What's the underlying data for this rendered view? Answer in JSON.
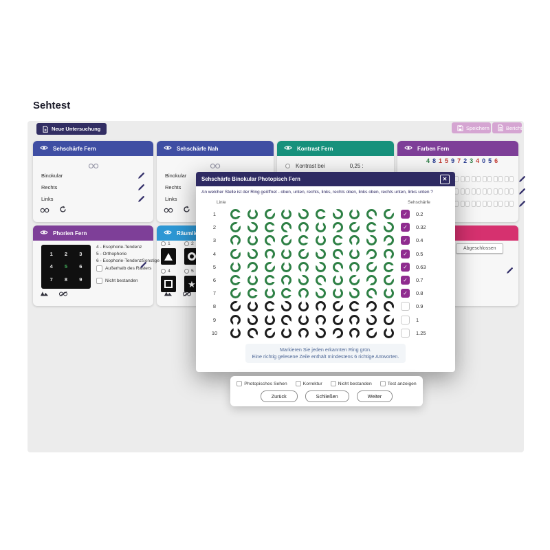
{
  "page": {
    "title": "Sehtest"
  },
  "toolbar": {
    "new_exam_label": "Neue Untersuchung",
    "save_label": "Speichern",
    "report_label": "Bericht"
  },
  "icons": {
    "close-icon": "✕",
    "check-icon": "✓",
    "star-icon": "★",
    "infinity-icon": "∞"
  },
  "colors": {
    "header_indigo": "#3f4ea3",
    "header_teal": "#17917c",
    "header_purple": "#7e3f98",
    "header_blue": "#2d97d4",
    "header_pink": "#d6316f",
    "modal_header": "#2e2a62",
    "ring_green": "#2e8045",
    "ring_black": "#1d1d1d",
    "checkbox_purple": "#8f2c8f",
    "digit_green": "#2e7d46",
    "digit_blue": "#273a8f",
    "digit_red": "#c23b33",
    "grid_highlight_green": "#43b05c"
  },
  "cards": {
    "sehscharfe_fern": {
      "title": "Sehschärfe Fern",
      "rows": [
        "Binokular",
        "Rechts",
        "Links"
      ]
    },
    "sehscharfe_nah": {
      "title": "Sehschärfe Nah",
      "rows": [
        "Binokular",
        "Rechts",
        "Links"
      ]
    },
    "kontrast_fern": {
      "title": "Kontrast Fern",
      "label": "Kontrast bei",
      "value": "0,25 :"
    },
    "farben_fern": {
      "title": "Farben Fern",
      "digits": [
        {
          "char": "4",
          "color": "green"
        },
        {
          "char": "8",
          "color": "blue"
        },
        {
          "char": "1",
          "color": "red"
        },
        {
          "char": "5",
          "color": "red"
        },
        {
          "char": "9",
          "color": "blue"
        },
        {
          "char": "7",
          "color": "red"
        },
        {
          "char": "2",
          "color": "blue"
        },
        {
          "char": "3",
          "color": "green"
        },
        {
          "char": "4",
          "color": "red"
        },
        {
          "char": "0",
          "color": "blue"
        },
        {
          "char": "5",
          "color": "blue"
        },
        {
          "char": "6",
          "color": "red"
        }
      ],
      "box_rows": 3,
      "pairs_per_row": 10
    },
    "phorien_fern": {
      "title": "Phorien Fern",
      "grid": [
        "1",
        "2",
        "3",
        "4",
        "5",
        "6",
        "7",
        "8",
        "9"
      ],
      "grid_highlight": "5",
      "legend": [
        "4 - Esophorie-Tendenz",
        "5 - Orthophorie",
        "6 - Exophorie-Tendenz"
      ],
      "legend_extra": "Sonstige",
      "checkbox_raster": "Außerhalb des Rasters",
      "checkbox_failed": "Nicht bestanden"
    },
    "raeumliches": {
      "title": "Räumliches Sehen",
      "options": [
        {
          "num": "1",
          "shape": "triangle"
        },
        {
          "num": "2",
          "shape": "circle"
        },
        {
          "num": "4",
          "shape": "square"
        },
        {
          "num": "5",
          "shape": "star"
        }
      ]
    },
    "status_card": {
      "status_label": "Abgeschlossen"
    }
  },
  "modal": {
    "title": "Sehschärfe Binokular Photopisch Fern",
    "question": "An welcher Stelle ist der Ring geöffnet - oben, unten, rechts, links, rechts oben, links oben, rechts unten, links unten ?",
    "col_line": "Linie",
    "col_acuity": "Sehschärfe",
    "rows": [
      {
        "line": "1",
        "checked": true,
        "color": "green",
        "value": "0.2",
        "gaps": [
          "right",
          "up",
          "up-right",
          "up",
          "up-left",
          "right",
          "up-left",
          "up",
          "down-right",
          "up-right"
        ]
      },
      {
        "line": "2",
        "checked": true,
        "color": "green",
        "value": "0.32",
        "gaps": [
          "up-right",
          "up-left",
          "right",
          "down-right",
          "down",
          "up",
          "down-left",
          "up-right",
          "right",
          "up-left"
        ]
      },
      {
        "line": "3",
        "checked": true,
        "color": "green",
        "value": "0.4",
        "gaps": [
          "down",
          "up",
          "down-right",
          "up-right",
          "right",
          "up",
          "right",
          "down",
          "up-left",
          "down-left"
        ]
      },
      {
        "line": "4",
        "checked": true,
        "color": "green",
        "value": "0.5",
        "gaps": [
          "up-right",
          "up-left",
          "down",
          "up",
          "up-right",
          "up-left",
          "down-right",
          "up",
          "down-left",
          "down"
        ]
      },
      {
        "line": "5",
        "checked": true,
        "color": "green",
        "value": "0.63",
        "gaps": [
          "up",
          "down-left",
          "up-right",
          "up",
          "down",
          "up-left",
          "down-right",
          "down",
          "up-right",
          "right"
        ]
      },
      {
        "line": "6",
        "checked": true,
        "color": "green",
        "value": "0.7",
        "gaps": [
          "right",
          "up",
          "right",
          "down",
          "up-left",
          "down-right",
          "up",
          "up-right",
          "down-left",
          "up-right"
        ]
      },
      {
        "line": "7",
        "checked": true,
        "color": "green",
        "value": "0.8",
        "gaps": [
          "up-right",
          "right",
          "up",
          "right",
          "down",
          "up-left",
          "up",
          "up-left",
          "down-right",
          "up"
        ]
      },
      {
        "line": "8",
        "checked": false,
        "color": "black",
        "value": "0.9",
        "gaps": [
          "up-right",
          "up",
          "right",
          "up-left",
          "up",
          "down",
          "up-right",
          "right",
          "down-left",
          "down-right"
        ]
      },
      {
        "line": "9",
        "checked": false,
        "color": "black",
        "value": "1",
        "gaps": [
          "down",
          "up-left",
          "up",
          "down-right",
          "up",
          "down",
          "up-right",
          "down",
          "up-left",
          "up-right"
        ]
      },
      {
        "line": "10",
        "checked": false,
        "color": "black",
        "value": "1.25",
        "gaps": [
          "up",
          "down-right",
          "up-right",
          "up",
          "down",
          "up-left",
          "down-left",
          "down",
          "up-right",
          "up"
        ]
      }
    ],
    "note_line1": "Markieren Sie jeden erkannten Ring grün.",
    "note_line2": "Eine richtig gelesene Zeile enthält mindestens 6 richtige Antworten."
  },
  "footer": {
    "options": [
      "Photopisches Sehen",
      "Korrektur",
      "Nicht bestanden",
      "Test anzeigen"
    ],
    "buttons": [
      "Zurück",
      "Schließen",
      "Weiter"
    ]
  }
}
